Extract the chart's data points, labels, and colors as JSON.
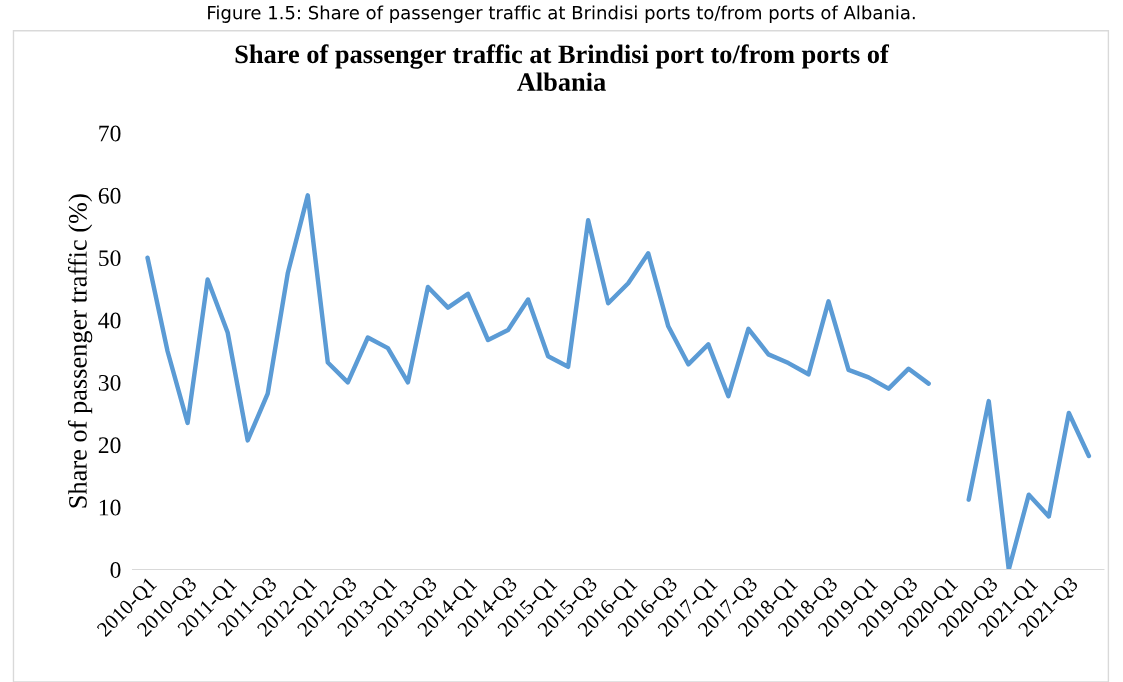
{
  "chart_data": {
    "type": "line",
    "title": "Share of passenger traffic at Brindisi port to/from ports of\nAlbania",
    "ylabel": "Share of passenger traffic (%)",
    "annotations": [
      "Figure 1.5: Share of passenger traffic at Brindisi ports to/from ports of Albania."
    ],
    "categories": [
      "2010-Q1",
      null,
      "2010-Q3",
      null,
      "2011-Q1",
      null,
      "2011-Q3",
      null,
      "2012-Q1",
      null,
      "2012-Q3",
      null,
      "2013-Q1",
      null,
      "2013-Q3",
      null,
      "2014-Q1",
      null,
      "2014-Q3",
      null,
      "2015-Q1",
      null,
      "2015-Q3",
      null,
      "2016-Q1",
      null,
      "2016-Q3",
      null,
      "2017-Q1",
      null,
      "2017-Q3",
      null,
      "2018-Q1",
      null,
      "2018-Q3",
      null,
      "2019-Q1",
      null,
      "2019-Q3",
      null,
      "2020-Q1",
      null,
      "2020-Q3",
      null,
      "2021-Q1",
      null,
      "2021-Q3",
      null
    ],
    "series": [
      {
        "color": "#5b9bd5",
        "values": [
          50,
          35,
          23.5,
          46.5,
          38,
          20.7,
          28.2,
          47.5,
          60,
          33.2,
          30,
          37.2,
          35.5,
          30,
          45.3,
          42,
          44.2,
          36.8,
          38.4,
          43.3,
          34.2,
          32.5,
          56,
          42.7,
          45.9,
          50.7,
          39,
          32.9,
          36.1,
          27.8,
          38.6,
          34.5,
          33.1,
          31.3,
          43,
          32,
          30.8,
          29,
          32.2,
          29.8,
          null,
          11.2,
          27,
          0,
          12,
          8.5,
          25.1,
          18.2
        ]
      }
    ],
    "ylim": [
      0,
      70
    ],
    "yticks": [
      0,
      10,
      20,
      30,
      40,
      50,
      60,
      70
    ],
    "grid": false,
    "legend": false,
    "marker": "none",
    "line_style": "solid"
  }
}
